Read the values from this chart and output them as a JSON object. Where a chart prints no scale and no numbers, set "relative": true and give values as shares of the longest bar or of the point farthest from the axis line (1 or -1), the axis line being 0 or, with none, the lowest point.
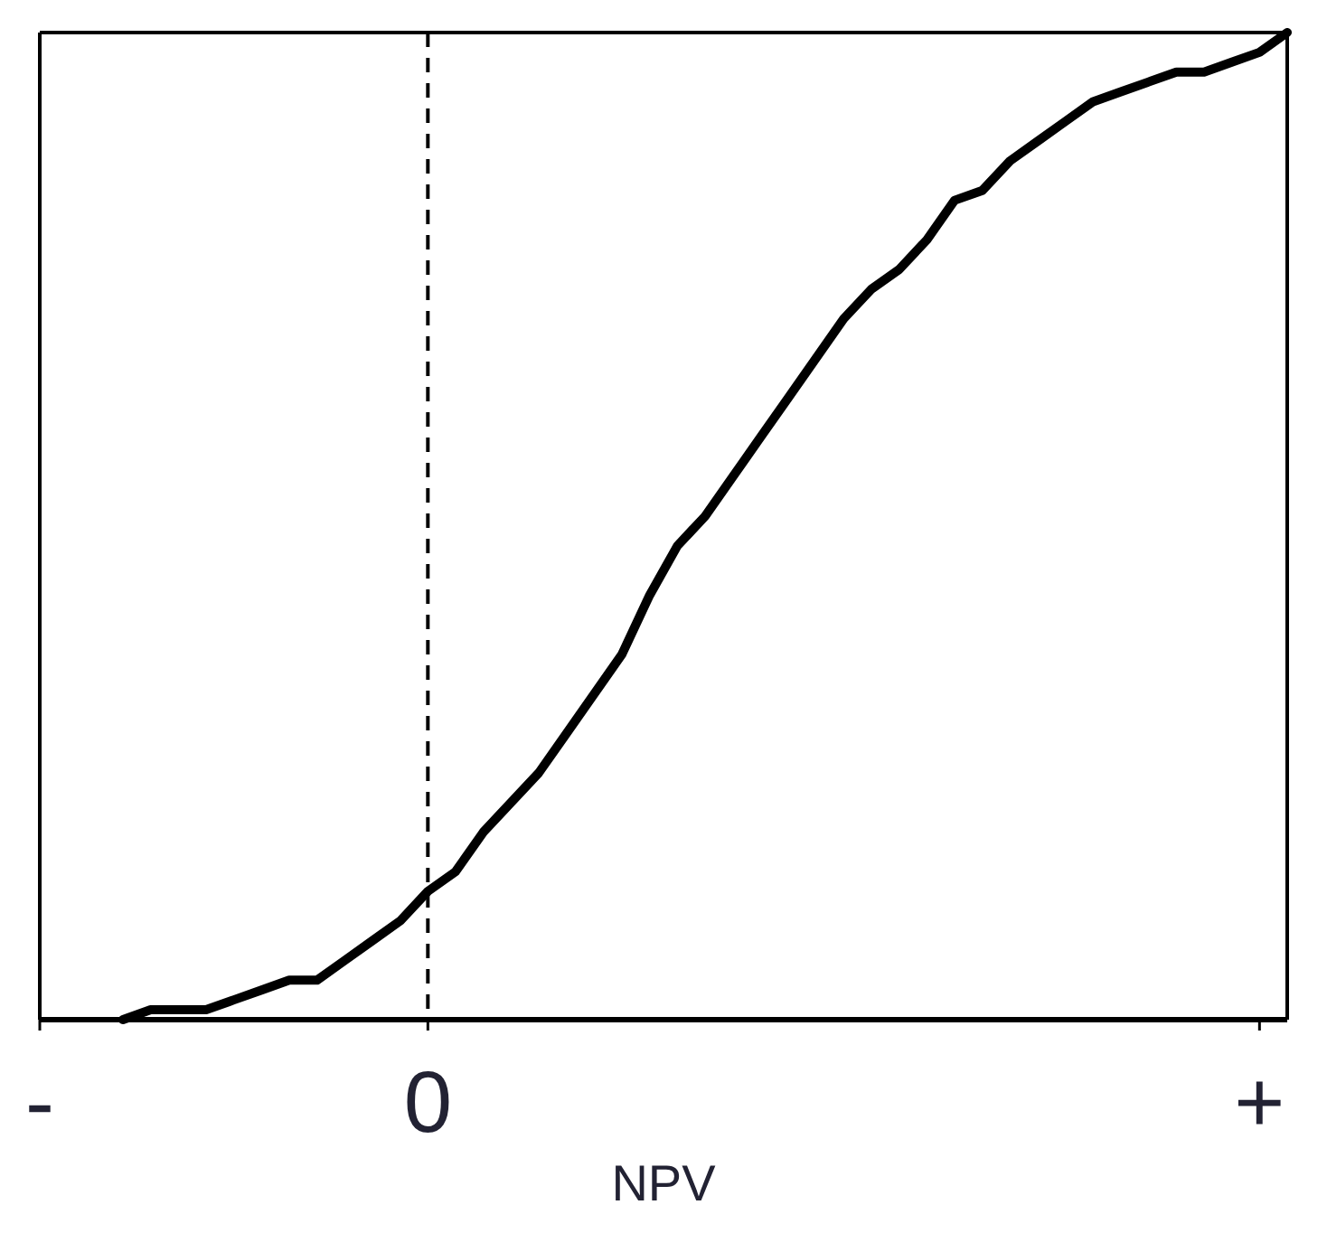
{
  "chart_data": {
    "type": "line",
    "xlabel": "NPV",
    "relative": true,
    "grid": false,
    "marker": "none",
    "line_style": "solid",
    "categories": [
      "-",
      null,
      null,
      null,
      null,
      null,
      null,
      null,
      null,
      null,
      null,
      null,
      null,
      null,
      "0",
      null,
      null,
      null,
      null,
      null,
      null,
      null,
      null,
      null,
      null,
      null,
      null,
      null,
      null,
      null,
      null,
      null,
      null,
      null,
      null,
      null,
      null,
      null,
      null,
      null,
      null,
      null,
      null,
      null,
      "+",
      null
    ],
    "series": [
      {
        "color": "#000000",
        "values": [
          null,
          null,
          null,
          0.0,
          0.01,
          0.01,
          0.01,
          0.02,
          0.03,
          0.04,
          0.04,
          0.06,
          0.08,
          0.1,
          0.13,
          0.15,
          0.19,
          0.22,
          0.25,
          0.29,
          0.33,
          0.37,
          0.43,
          0.48,
          0.51,
          0.55,
          0.59,
          0.63,
          0.67,
          0.71,
          0.74,
          0.76,
          0.79,
          0.83,
          0.84,
          0.87,
          0.89,
          0.91,
          0.93,
          0.94,
          0.95,
          0.96,
          0.96,
          0.97,
          0.98,
          1.0
        ]
      }
    ],
    "ref_lines": [
      {
        "axis": "x",
        "value": "0",
        "line_style": "dashed",
        "color": "#000000"
      }
    ]
  }
}
